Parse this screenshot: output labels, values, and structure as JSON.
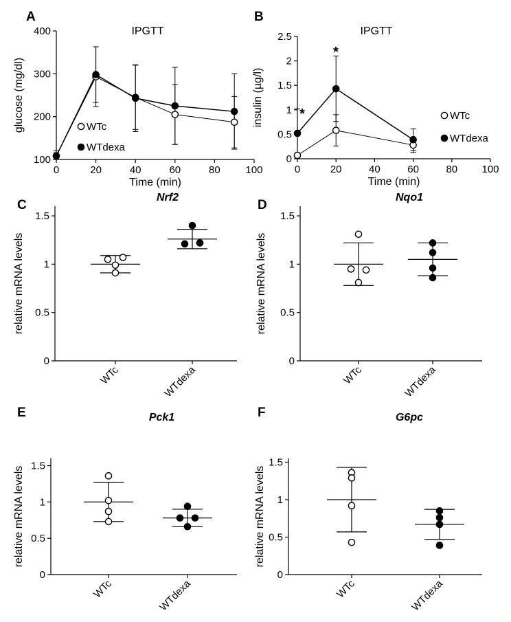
{
  "chart_data": [
    {
      "panel": "A",
      "type": "line",
      "title": "IPGTT",
      "xlabel": "Time (min)",
      "ylabel": "glucose (mg/dl)",
      "xlim": [
        0,
        100
      ],
      "ylim": [
        100,
        400
      ],
      "xticks": [
        "0",
        "20",
        "40",
        "60",
        "80",
        "100"
      ],
      "yticks": [
        "100",
        "200",
        "300",
        "400"
      ],
      "x": [
        0,
        20,
        40,
        60,
        90
      ],
      "series": [
        {
          "name": "WTc",
          "marker": "open",
          "values": [
            108,
            293,
            245,
            205,
            187
          ],
          "err": [
            12,
            70,
            75,
            70,
            60
          ]
        },
        {
          "name": "WTdexa",
          "marker": "filled",
          "values": [
            108,
            298,
            243,
            225,
            212
          ],
          "err": [
            8,
            65,
            78,
            90,
            88
          ]
        }
      ],
      "legend": [
        "WTc",
        "WTdexa"
      ],
      "annotations": []
    },
    {
      "panel": "B",
      "type": "line",
      "title": "IPGTT",
      "xlabel": "Time (min)",
      "ylabel": "insulin (µg/l)",
      "xlim": [
        0,
        100
      ],
      "ylim": [
        0,
        2.5
      ],
      "xticks": [
        "0",
        "20",
        "40",
        "60",
        "80",
        "100"
      ],
      "yticks": [
        "0",
        "0.5",
        "1",
        "1.5",
        "2",
        "2.5"
      ],
      "x": [
        0,
        20,
        60
      ],
      "series": [
        {
          "name": "WTc",
          "marker": "open",
          "values": [
            0.07,
            0.58,
            0.28
          ],
          "err": [
            0.05,
            0.32,
            0.15
          ]
        },
        {
          "name": "WTdexa",
          "marker": "filled",
          "values": [
            0.52,
            1.43,
            0.39
          ],
          "err": [
            0.5,
            0.67,
            0.22
          ]
        }
      ],
      "legend": [
        "WTc",
        "WTdexa"
      ],
      "annotations": [
        "*",
        "*"
      ]
    },
    {
      "panel": "C",
      "type": "scatter",
      "title": "Nrf2",
      "ylabel": "relative mRNA levels",
      "ylim": [
        0,
        1.6
      ],
      "yticks": [
        "0",
        "0.5",
        "1",
        "1.5"
      ],
      "categories": [
        "WTc",
        "WTdexa"
      ],
      "groups": [
        {
          "name": "WTc",
          "marker": "open",
          "mean": 1.0,
          "sd": 0.09,
          "points": [
            1.05,
            1.07,
            0.99,
            0.91
          ]
        },
        {
          "name": "WTdexa",
          "marker": "filled",
          "mean": 1.26,
          "sd": 0.1,
          "points": [
            1.4,
            1.22,
            1.21,
            1.22
          ]
        }
      ]
    },
    {
      "panel": "D",
      "type": "scatter",
      "title": "Nqo1",
      "ylabel": "relative mRNA levels",
      "ylim": [
        0,
        1.6
      ],
      "yticks": [
        "0",
        "0.5",
        "1",
        "1.5"
      ],
      "categories": [
        "WTc",
        "WTdexa"
      ],
      "groups": [
        {
          "name": "WTc",
          "marker": "open",
          "mean": 1.0,
          "sd": 0.22,
          "points": [
            1.31,
            0.94,
            0.95,
            0.81
          ]
        },
        {
          "name": "WTdexa",
          "marker": "filled",
          "mean": 1.05,
          "sd": 0.17,
          "points": [
            1.22,
            1.12,
            0.96,
            0.86
          ]
        }
      ]
    },
    {
      "panel": "E",
      "type": "scatter",
      "title": "Pck1",
      "ylabel": "relative mRNA levels",
      "ylim": [
        0,
        1.6
      ],
      "yticks": [
        "0",
        "0.5",
        "1",
        "1.5"
      ],
      "categories": [
        "WTc",
        "WTdexa"
      ],
      "groups": [
        {
          "name": "WTc",
          "marker": "open",
          "mean": 1.0,
          "sd": 0.27,
          "points": [
            1.36,
            1.02,
            0.87,
            0.73
          ]
        },
        {
          "name": "WTdexa",
          "marker": "filled",
          "mean": 0.78,
          "sd": 0.12,
          "points": [
            0.94,
            0.78,
            0.78,
            0.66
          ]
        }
      ]
    },
    {
      "panel": "F",
      "type": "scatter",
      "title": "G6pc",
      "ylabel": "relative mRNA levels",
      "ylim": [
        0,
        1.55
      ],
      "yticks": [
        "0",
        "0.5",
        "1",
        "1.5"
      ],
      "categories": [
        "WTc",
        "WTdexa"
      ],
      "groups": [
        {
          "name": "WTc",
          "marker": "open",
          "mean": 1.0,
          "sd": 0.43,
          "points": [
            1.36,
            1.29,
            0.92,
            0.43
          ]
        },
        {
          "name": "WTdexa",
          "marker": "filled",
          "mean": 0.67,
          "sd": 0.2,
          "points": [
            0.85,
            0.76,
            0.67,
            0.39
          ]
        }
      ]
    }
  ]
}
